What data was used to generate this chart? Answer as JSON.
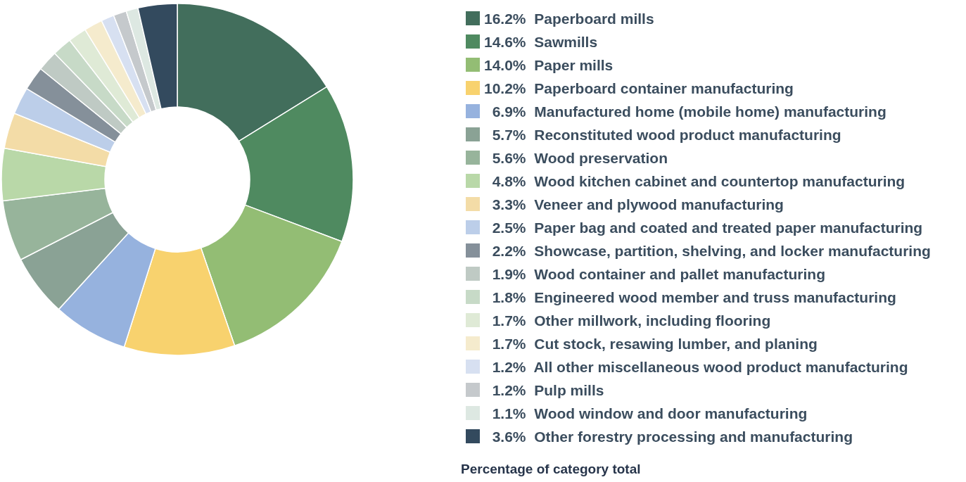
{
  "chart_data": {
    "type": "donut",
    "categories": [
      "Paperboard mills",
      "Sawmills",
      "Paper mills",
      "Paperboard container manufacturing",
      "Manufactured home (mobile home) manufacturing",
      "Reconstituted wood product manufacturing",
      "Wood preservation",
      "Wood kitchen cabinet and countertop manufacturing",
      "Veneer and plywood manufacturing",
      "Paper bag and coated and treated paper manufacturing",
      "Showcase, partition, shelving, and locker manufacturing",
      "Wood container and pallet manufacturing",
      "Engineered wood member and truss manufacturing",
      "Other millwork, including flooring",
      "Cut stock, resawing lumber, and planing",
      "All other miscellaneous wood product manufacturing",
      "Pulp mills",
      "Wood window and door manufacturing",
      "Other forestry processing and manufacturing"
    ],
    "values": [
      16.2,
      14.6,
      14.0,
      10.2,
      6.9,
      5.7,
      5.6,
      4.8,
      3.3,
      2.5,
      2.2,
      1.9,
      1.8,
      1.7,
      1.7,
      1.2,
      1.2,
      1.1,
      3.6
    ],
    "value_labels": [
      "16.2%",
      "14.6%",
      "14.0%",
      "10.2%",
      "6.9%",
      "5.7%",
      "5.6%",
      "4.8%",
      "3.3%",
      "2.5%",
      "2.2%",
      "1.9%",
      "1.8%",
      "1.7%",
      "1.7%",
      "1.2%",
      "1.2%",
      "1.1%",
      "3.6%"
    ],
    "colors": [
      "#426e5c",
      "#4f8a60",
      "#93bd74",
      "#f8d26e",
      "#96b2de",
      "#8aa295",
      "#97b49b",
      "#b9d8a8",
      "#f3dca7",
      "#bccee9",
      "#85909a",
      "#bfcac4",
      "#c7dac7",
      "#dfead6",
      "#f5ebcd",
      "#d7e0f1",
      "#c5c9cc",
      "#dde8e2",
      "#334a5e"
    ],
    "legend": "right",
    "annotations": [
      "Percentage of category total"
    ]
  }
}
